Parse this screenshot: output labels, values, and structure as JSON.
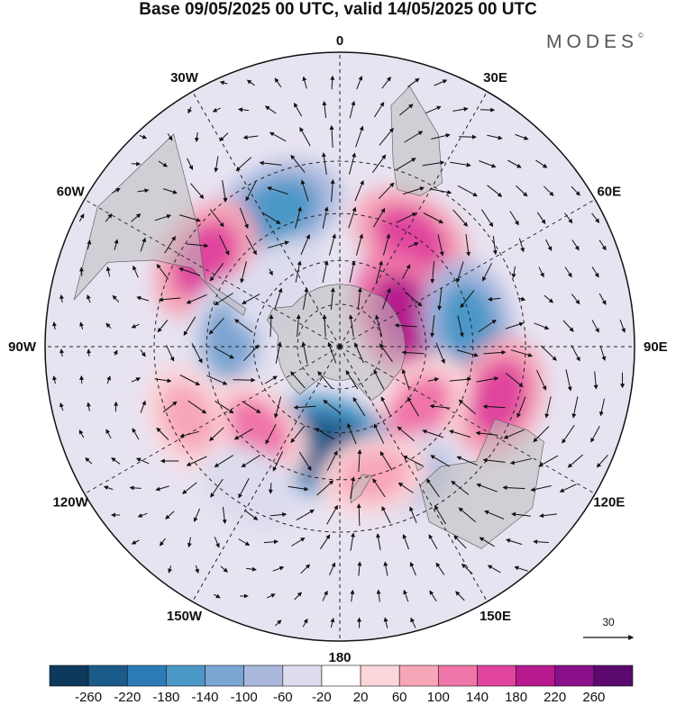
{
  "title": "Base 09/05/2025 00 UTC, valid 14/05/2025 00 UTC",
  "brand": "MODES",
  "brand_mark": "©",
  "map": {
    "projection": "south-polar-stereographic",
    "center_latitude": -90,
    "longitude_labels": [
      {
        "lon": 0,
        "text": "0"
      },
      {
        "lon": 30,
        "text": "30E"
      },
      {
        "lon": 60,
        "text": "60E"
      },
      {
        "lon": 90,
        "text": "90E"
      },
      {
        "lon": 120,
        "text": "120E"
      },
      {
        "lon": 150,
        "text": "150E"
      },
      {
        "lon": 180,
        "text": "180"
      },
      {
        "lon": -150,
        "text": "150W"
      },
      {
        "lon": -120,
        "text": "120W"
      },
      {
        "lon": -90,
        "text": "90W"
      },
      {
        "lon": -60,
        "text": "60W"
      },
      {
        "lon": -30,
        "text": "30W"
      }
    ],
    "latitude_circles": [
      -30,
      -45,
      -60,
      -75
    ],
    "reference_vector": {
      "value": "30"
    }
  },
  "anomalies": [
    {
      "name": "neg-30W",
      "lon": -25,
      "lat": -40,
      "value": -180
    },
    {
      "name": "pos-55W",
      "lon": -57,
      "lat": -37,
      "value": 160
    },
    {
      "name": "neg-85W",
      "lon": -86,
      "lat": -52,
      "value": -140
    },
    {
      "name": "pos-35E",
      "lon": 33,
      "lat": -46,
      "value": 140
    },
    {
      "name": "pos-65E",
      "lon": 66,
      "lat": -65,
      "value": 200
    },
    {
      "name": "neg-80E",
      "lon": 80,
      "lat": -46,
      "value": -160
    },
    {
      "name": "pos-110E",
      "lon": 108,
      "lat": -35,
      "value": 140
    },
    {
      "name": "pos-130E",
      "lon": 128,
      "lat": -55,
      "value": 120
    },
    {
      "name": "neg-150E",
      "lon": 150,
      "lat": -40,
      "value": -80
    },
    {
      "name": "neg-170W",
      "lon": -170,
      "lat": -55,
      "value": -240
    },
    {
      "name": "pos-135W",
      "lon": -135,
      "lat": -50,
      "value": 100
    },
    {
      "name": "pos-115W",
      "lon": -115,
      "lat": -35,
      "value": 80
    },
    {
      "name": "neg-140W",
      "lon": -148,
      "lat": -35,
      "value": -60
    },
    {
      "name": "pos-165E",
      "lon": 165,
      "lat": -45,
      "value": 80
    },
    {
      "name": "neg-50W",
      "lon": -45,
      "lat": -60,
      "value": -60
    }
  ],
  "colorbar": {
    "colors": [
      "#0d3a5c",
      "#1b5b8a",
      "#2c7bb6",
      "#4b97c8",
      "#7ba5d2",
      "#aab8de",
      "#dcdcee",
      "#ffffff",
      "#fbd6da",
      "#f7a6b7",
      "#f075a8",
      "#e0449e",
      "#b61a8e",
      "#8a0f8a",
      "#5a0a6e"
    ],
    "ticks": [
      "-260",
      "-220",
      "-180",
      "-140",
      "-100",
      "-60",
      "-20",
      "20",
      "60",
      "100",
      "140",
      "180",
      "220",
      "260"
    ]
  }
}
